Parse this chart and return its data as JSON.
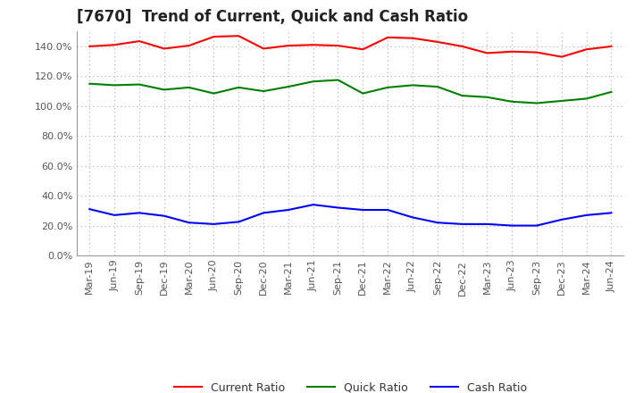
{
  "title": "[7670]  Trend of Current, Quick and Cash Ratio",
  "labels": [
    "Mar-19",
    "Jun-19",
    "Sep-19",
    "Dec-19",
    "Mar-20",
    "Jun-20",
    "Sep-20",
    "Dec-20",
    "Mar-21",
    "Jun-21",
    "Sep-21",
    "Dec-21",
    "Mar-22",
    "Jun-22",
    "Sep-22",
    "Dec-22",
    "Mar-23",
    "Jun-23",
    "Sep-23",
    "Dec-23",
    "Mar-24",
    "Jun-24"
  ],
  "current_ratio": [
    140.0,
    141.0,
    143.5,
    138.5,
    140.5,
    146.5,
    147.0,
    138.5,
    140.5,
    141.0,
    140.5,
    138.0,
    146.0,
    145.5,
    143.0,
    140.0,
    135.5,
    136.5,
    136.0,
    133.0,
    138.0,
    140.0
  ],
  "quick_ratio": [
    115.0,
    114.0,
    114.5,
    111.0,
    112.5,
    108.5,
    112.5,
    110.0,
    113.0,
    116.5,
    117.5,
    108.5,
    112.5,
    114.0,
    113.0,
    107.0,
    106.0,
    103.0,
    102.0,
    103.5,
    105.0,
    109.5
  ],
  "cash_ratio": [
    31.0,
    27.0,
    28.5,
    26.5,
    22.0,
    21.0,
    22.5,
    28.5,
    30.5,
    34.0,
    32.0,
    30.5,
    30.5,
    25.5,
    22.0,
    21.0,
    21.0,
    20.0,
    20.0,
    24.0,
    27.0,
    28.5
  ],
  "current_color": "#FF0000",
  "quick_color": "#008000",
  "cash_color": "#0000FF",
  "ylim": [
    0,
    150
  ],
  "yticks": [
    0.0,
    20.0,
    40.0,
    60.0,
    80.0,
    100.0,
    120.0,
    140.0
  ],
  "background_color": "#FFFFFF",
  "grid_color": "#BBBBBB",
  "title_fontsize": 12,
  "tick_fontsize": 8,
  "legend_fontsize": 9
}
